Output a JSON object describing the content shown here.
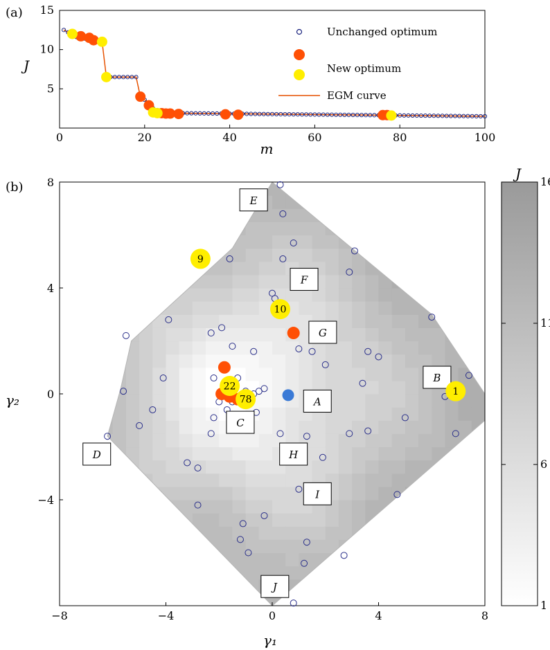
{
  "chart_data": [
    {
      "type": "scatter",
      "panel_label": "(a)",
      "xlabel": "m",
      "ylabel": "J",
      "xlim": [
        0,
        100
      ],
      "ylim": [
        0,
        15
      ],
      "x_ticks": [
        "0",
        "20",
        "40",
        "60",
        "80",
        "100"
      ],
      "y_ticks": [
        "5",
        "10",
        "15"
      ],
      "legend": {
        "position": "top-right",
        "unchanged": "Unchanged optimum",
        "new": "New optimum",
        "curve": "EGM curve"
      },
      "egm_curve": [
        [
          1,
          12.5
        ],
        [
          2,
          12.2
        ],
        [
          3,
          11.8
        ],
        [
          4,
          11.6
        ],
        [
          5,
          11.5
        ],
        [
          6,
          11.4
        ],
        [
          7,
          11.2
        ],
        [
          8,
          11.1
        ],
        [
          9,
          11.0
        ],
        [
          10,
          11.0
        ],
        [
          11,
          6.5
        ],
        [
          12,
          6.5
        ],
        [
          13,
          6.5
        ],
        [
          14,
          6.5
        ],
        [
          15,
          6.5
        ],
        [
          16,
          6.5
        ],
        [
          17,
          6.5
        ],
        [
          18,
          6.5
        ],
        [
          19,
          4.0
        ],
        [
          20,
          3.6
        ],
        [
          21,
          3.2
        ],
        [
          22,
          2.5
        ],
        [
          23,
          2.3
        ],
        [
          24,
          2.1
        ],
        [
          25,
          2.0
        ],
        [
          26,
          2.0
        ],
        [
          27,
          1.9
        ],
        [
          28,
          1.9
        ],
        [
          100,
          1.5
        ]
      ],
      "unchanged_x_range": [
        1,
        100
      ],
      "new_optimum_red": [
        [
          5,
          11.7
        ],
        [
          7,
          11.5
        ],
        [
          8,
          11.2
        ],
        [
          19,
          4.0
        ],
        [
          21,
          2.9
        ],
        [
          24,
          1.9
        ],
        [
          25,
          1.85
        ],
        [
          26,
          1.85
        ],
        [
          28,
          1.8
        ],
        [
          39,
          1.75
        ],
        [
          42,
          1.7
        ],
        [
          76,
          1.65
        ],
        [
          77,
          1.65
        ]
      ],
      "new_optimum_yellow": [
        [
          3,
          12.0
        ],
        [
          10,
          11.0
        ],
        [
          11,
          6.5
        ],
        [
          22,
          2.0
        ],
        [
          23,
          1.9
        ],
        [
          78,
          1.6
        ]
      ]
    },
    {
      "type": "heatmap",
      "panel_label": "(b)",
      "xlabel": "γ₁",
      "ylabel": "γ₂",
      "xlim": [
        -8,
        8
      ],
      "ylim": [
        -8,
        8
      ],
      "x_ticks": [
        "−8",
        "−4",
        "0",
        "4",
        "8"
      ],
      "y_ticks": [
        "−4",
        "0",
        "4",
        "8"
      ],
      "colorbar": {
        "label": "J",
        "min": 1,
        "max": 16,
        "ticks": [
          "1",
          "6",
          "11",
          "16"
        ]
      },
      "hull": [
        [
          0,
          8
        ],
        [
          6,
          3
        ],
        [
          8,
          0
        ],
        [
          8,
          -1
        ],
        [
          0,
          -8
        ],
        [
          -6.2,
          -1.6
        ],
        [
          -5.7,
          0.2
        ],
        [
          -5.3,
          2
        ],
        [
          -1.5,
          5.5
        ]
      ],
      "region_labels": [
        {
          "label": "A",
          "x": 1.7,
          "y": -0.3
        },
        {
          "label": "B",
          "x": 6.2,
          "y": 0.6
        },
        {
          "label": "C",
          "x": -1.2,
          "y": -1.1
        },
        {
          "label": "D",
          "x": -6.6,
          "y": -2.3
        },
        {
          "label": "E",
          "x": -0.7,
          "y": 7.3
        },
        {
          "label": "F",
          "x": 1.2,
          "y": 4.3
        },
        {
          "label": "G",
          "x": 1.9,
          "y": 2.3
        },
        {
          "label": "H",
          "x": 0.8,
          "y": -2.3
        },
        {
          "label": "I",
          "x": 1.7,
          "y": -3.8
        },
        {
          "label": "J",
          "x": 0.1,
          "y": -7.3
        }
      ],
      "samples": [
        [
          0.3,
          7.9
        ],
        [
          0.4,
          6.8
        ],
        [
          0.8,
          5.7
        ],
        [
          0.4,
          5.1
        ],
        [
          -1.6,
          5.1
        ],
        [
          3.1,
          5.4
        ],
        [
          2.9,
          4.6
        ],
        [
          0,
          3.8
        ],
        [
          0.1,
          3.6
        ],
        [
          -3.9,
          2.8
        ],
        [
          6.0,
          2.9
        ],
        [
          -5.5,
          2.2
        ],
        [
          -2.3,
          2.3
        ],
        [
          -1.9,
          2.5
        ],
        [
          -1.5,
          1.8
        ],
        [
          1.0,
          1.7
        ],
        [
          1.5,
          1.6
        ],
        [
          3.6,
          1.6
        ],
        [
          4.0,
          1.4
        ],
        [
          -0.7,
          1.6
        ],
        [
          2.0,
          1.1
        ],
        [
          -4.1,
          0.6
        ],
        [
          -1.3,
          0.6
        ],
        [
          -1.8,
          0.4
        ],
        [
          -2.2,
          0.6
        ],
        [
          -5.6,
          0.1
        ],
        [
          3.4,
          0.4
        ],
        [
          6.5,
          -0.1
        ],
        [
          7.4,
          0.7
        ],
        [
          -0.3,
          0.2
        ],
        [
          -0.5,
          0.1
        ],
        [
          -0.7,
          0.0
        ],
        [
          -0.9,
          -0.1
        ],
        [
          -1.0,
          0.1
        ],
        [
          -1.2,
          -0.2
        ],
        [
          -1.5,
          -0.3
        ],
        [
          -2.0,
          -0.3
        ],
        [
          -2.2,
          -0.9
        ],
        [
          -1.7,
          -0.6
        ],
        [
          -0.6,
          -0.7
        ],
        [
          -4.5,
          -0.6
        ],
        [
          -5.0,
          -1.2
        ],
        [
          -2.3,
          -1.5
        ],
        [
          0.3,
          -1.5
        ],
        [
          1.3,
          -1.6
        ],
        [
          2.9,
          -1.5
        ],
        [
          3.6,
          -1.4
        ],
        [
          5.0,
          -0.9
        ],
        [
          6.9,
          -1.5
        ],
        [
          -6.2,
          -1.6
        ],
        [
          1.9,
          -2.4
        ],
        [
          -3.2,
          -2.6
        ],
        [
          -2.8,
          -2.8
        ],
        [
          1.0,
          -3.6
        ],
        [
          4.7,
          -3.8
        ],
        [
          -2.8,
          -4.2
        ],
        [
          -1.1,
          -4.9
        ],
        [
          -0.3,
          -4.6
        ],
        [
          -1.2,
          -5.5
        ],
        [
          -0.9,
          -6.0
        ],
        [
          1.3,
          -5.6
        ],
        [
          2.7,
          -6.1
        ],
        [
          1.2,
          -6.4
        ],
        [
          0.8,
          -7.9
        ]
      ],
      "optimum_blue": [
        0.6,
        -0.05
      ],
      "new_optimum_red": [
        [
          0.8,
          2.3
        ],
        [
          -1.8,
          1.0
        ],
        [
          -1.9,
          0.0
        ],
        [
          -1.6,
          -0.1
        ],
        [
          -1.3,
          -0.2
        ]
      ],
      "new_optimum_yellow": [
        {
          "label": "1",
          "x": 6.9,
          "y": 0.1
        },
        {
          "label": "9",
          "x": -2.7,
          "y": 5.1
        },
        {
          "label": "10",
          "x": 0.3,
          "y": 3.2
        },
        {
          "label": "22",
          "x": -1.6,
          "y": 0.3
        },
        {
          "label": "78",
          "x": -1.0,
          "y": -0.2
        }
      ]
    }
  ]
}
